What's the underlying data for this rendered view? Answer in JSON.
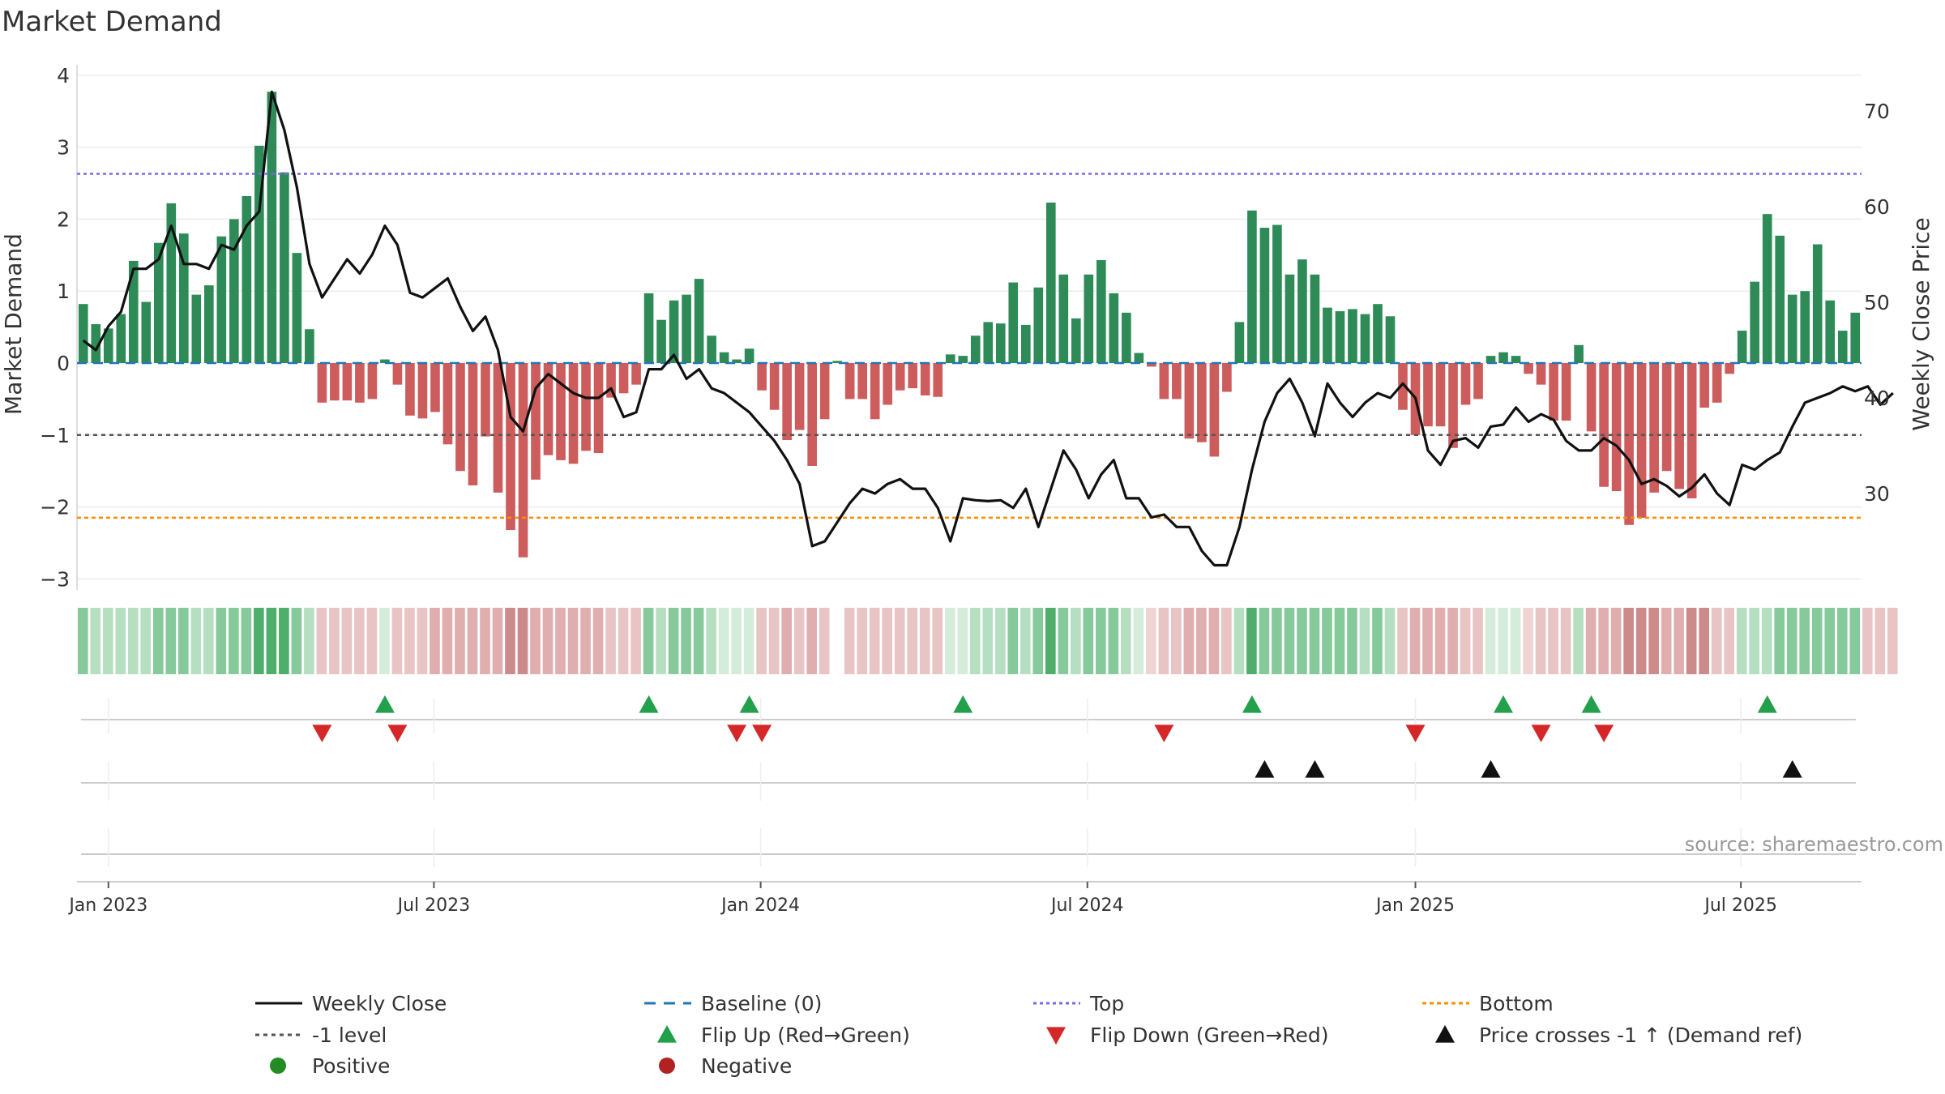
{
  "chart_data": {
    "type": "bar",
    "title": "Market Demand",
    "ylabel": "Market Demand",
    "y2label": "Weekly Close Price",
    "ylim": [
      -3.5,
      4.0
    ],
    "y2lim": [
      20,
      75
    ],
    "yticks": [
      "4",
      "3",
      "2",
      "1",
      "0",
      "−1",
      "−2",
      "−3"
    ],
    "yticks_values": [
      4,
      3,
      2,
      1,
      0,
      -1,
      -2,
      -3
    ],
    "y2ticks": [
      "70",
      "60",
      "50",
      "40",
      "30"
    ],
    "y2ticks_values": [
      70,
      60,
      50,
      40,
      30
    ],
    "xticks": [
      "Jan 2023",
      "Jul 2023",
      "Jan 2024",
      "Jul 2024",
      "Jan 2025",
      "Jul 2025"
    ],
    "xticks_weeks": [
      2,
      27.9,
      53.9,
      79.9,
      106,
      131.9
    ],
    "reference_lines": {
      "top": 2.63,
      "bottom": -2.15,
      "minus_one": -1,
      "baseline": 0
    },
    "demand_bars": [
      0.82,
      0.54,
      0.48,
      0.68,
      1.42,
      0.85,
      1.67,
      2.22,
      1.8,
      0.95,
      1.08,
      1.76,
      2.0,
      2.32,
      3.02,
      3.77,
      2.65,
      1.53,
      0.47,
      -0.55,
      -0.52,
      -0.52,
      -0.55,
      -0.5,
      0.05,
      -0.3,
      -0.73,
      -0.77,
      -0.68,
      -1.13,
      -1.5,
      -1.7,
      -1.02,
      -1.8,
      -2.32,
      -2.7,
      -1.62,
      -1.28,
      -1.35,
      -1.4,
      -1.22,
      -1.25,
      -0.48,
      -0.42,
      -0.3,
      0.97,
      0.6,
      0.87,
      0.95,
      1.17,
      0.38,
      0.15,
      0.05,
      0.2,
      -0.38,
      -0.65,
      -1.07,
      -0.93,
      -1.43,
      -0.78,
      0.03,
      -0.5,
      -0.5,
      -0.78,
      -0.58,
      -0.38,
      -0.35,
      -0.45,
      -0.47,
      0.12,
      0.1,
      0.38,
      0.57,
      0.55,
      1.12,
      0.53,
      1.05,
      2.23,
      1.23,
      0.62,
      1.23,
      1.43,
      0.97,
      0.7,
      0.14,
      -0.05,
      -0.5,
      -0.5,
      -1.05,
      -1.1,
      -1.3,
      -0.4,
      0.57,
      2.12,
      1.88,
      1.92,
      1.23,
      1.44,
      1.23,
      0.77,
      0.72,
      0.75,
      0.68,
      0.82,
      0.65,
      -0.65,
      -1.0,
      -0.88,
      -0.88,
      -1.18,
      -0.58,
      -0.5,
      0.1,
      0.15,
      0.1,
      -0.15,
      -0.3,
      -0.8,
      -0.8,
      0.25,
      -0.95,
      -1.72,
      -1.78,
      -2.25,
      -2.15,
      -1.8,
      -1.5,
      -1.75,
      -1.88,
      -0.62,
      -0.55,
      -0.15,
      0.45,
      1.13,
      2.07,
      1.77,
      0.95,
      1.0,
      1.65,
      0.87,
      0.45,
      0.7
    ],
    "weekly_close": [
      46,
      45,
      47.5,
      49,
      53.5,
      53.5,
      54.5,
      58,
      54,
      54,
      53.5,
      56,
      55.5,
      58,
      59.5,
      72,
      68,
      62,
      54,
      50.5,
      52.5,
      54.5,
      53,
      55,
      58,
      56,
      51,
      50.5,
      51.5,
      52.5,
      49.5,
      47,
      48.5,
      45,
      38,
      36.5,
      41,
      42.5,
      41.5,
      40.5,
      40,
      40,
      41,
      38,
      38.5,
      43,
      43,
      44.5,
      42,
      43,
      41,
      40.5,
      39.5,
      38.5,
      37,
      35.5,
      33.5,
      31,
      24.5,
      25,
      27,
      29,
      30.5,
      30,
      31,
      31.5,
      30.5,
      30.5,
      28.5,
      25,
      29.5,
      29.3,
      29.2,
      29.3,
      28.5,
      30.5,
      26.5,
      30.5,
      34.5,
      32.5,
      29.5,
      32,
      33.5,
      29.5,
      29.5,
      27.5,
      27.8,
      26.5,
      26.5,
      24,
      22.5,
      22.5,
      26.5,
      32.5,
      37.5,
      40.5,
      42,
      39.5,
      36,
      41.5,
      39.5,
      38,
      39.5,
      40.5,
      40,
      41.5,
      40,
      34.5,
      33,
      35.5,
      35.8,
      34.8,
      37,
      37.2,
      39,
      37.5,
      38.3,
      37.7,
      35.5,
      34.5,
      34.5,
      35.8,
      35,
      33.5,
      31,
      31.5,
      30.8,
      29.7,
      30.6,
      32,
      30,
      28.8,
      33,
      32.5,
      33.5,
      34.3,
      37,
      39.5,
      40,
      40.5,
      41.2,
      40.7,
      41.2,
      39.3,
      40.5
    ],
    "strip_shades": [
      2,
      1,
      1,
      1,
      1,
      1,
      2,
      2,
      2,
      1,
      1,
      2,
      2,
      2,
      3,
      3,
      3,
      2,
      1,
      1,
      1,
      1,
      1,
      1,
      0,
      1,
      1,
      1,
      2,
      2,
      2,
      2,
      2,
      2,
      3,
      3,
      2,
      2,
      2,
      2,
      2,
      2,
      1,
      1,
      1,
      2,
      1,
      2,
      2,
      2,
      1,
      0,
      0,
      0,
      1,
      1,
      2,
      1,
      2,
      1,
      -1,
      1,
      1,
      1,
      1,
      1,
      1,
      1,
      1,
      0,
      0,
      1,
      1,
      1,
      2,
      1,
      2,
      3,
      2,
      1,
      2,
      2,
      2,
      1,
      0,
      0,
      1,
      1,
      2,
      2,
      2,
      1,
      1,
      3,
      2,
      2,
      2,
      2,
      2,
      2,
      2,
      2,
      1,
      2,
      1,
      1,
      2,
      2,
      2,
      2,
      1,
      1,
      0,
      0,
      0,
      0,
      1,
      1,
      1,
      1,
      2,
      2,
      2,
      3,
      3,
      3,
      2,
      2,
      3,
      3,
      1,
      1,
      1,
      1,
      1,
      2,
      2,
      2,
      2,
      2,
      2,
      2,
      1,
      1,
      1
    ],
    "flip_up_weeks": [
      24,
      45,
      53,
      70,
      93,
      113,
      120,
      134
    ],
    "flip_down_weeks": [
      19,
      25,
      52,
      54,
      86,
      106,
      116,
      121
    ],
    "price_cross_weeks": [
      94,
      98,
      112,
      136
    ],
    "source": "source: sharemaestro.com",
    "legend": [
      "Weekly Close",
      "Baseline (0)",
      "Top",
      "Bottom",
      "-1 level",
      "Flip Up (Red→Green)",
      "Flip Down (Green→Red)",
      "Price crosses -1 ↑ (Demand ref)",
      "Positive",
      "Negative"
    ]
  },
  "colors": {
    "positive": "#2e8b57",
    "negative": "#cd5c5c",
    "close_line": "#111111",
    "top_line": "#7b68ee",
    "bottom_line": "#ff8c00",
    "minus_one_line": "#555555",
    "baseline": "#1f77b4",
    "flip_up": "#22a04b",
    "flip_down": "#d62728",
    "cross": "#111111",
    "legend_positive": "#228b22",
    "legend_negative": "#b22222"
  }
}
